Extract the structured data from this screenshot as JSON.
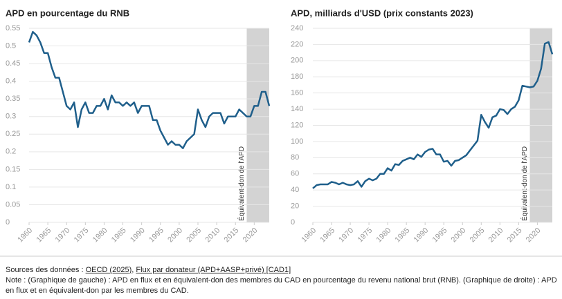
{
  "chart_data": [
    {
      "type": "line",
      "title": "APD en pourcentage du RNB",
      "color": "#1f5f8b",
      "grid": true,
      "x": [
        1960,
        1961,
        1962,
        1963,
        1964,
        1965,
        1966,
        1967,
        1968,
        1969,
        1970,
        1971,
        1972,
        1973,
        1974,
        1975,
        1976,
        1977,
        1978,
        1979,
        1980,
        1981,
        1982,
        1983,
        1984,
        1985,
        1986,
        1987,
        1988,
        1989,
        1990,
        1991,
        1992,
        1993,
        1994,
        1995,
        1996,
        1997,
        1998,
        1999,
        2000,
        2001,
        2002,
        2003,
        2004,
        2005,
        2006,
        2007,
        2008,
        2009,
        2010,
        2011,
        2012,
        2013,
        2014,
        2015,
        2016,
        2017,
        2018,
        2019,
        2020,
        2021,
        2022,
        2023,
        2024
      ],
      "values": [
        0.51,
        0.54,
        0.53,
        0.51,
        0.48,
        0.48,
        0.44,
        0.41,
        0.41,
        0.37,
        0.33,
        0.32,
        0.34,
        0.27,
        0.32,
        0.34,
        0.31,
        0.31,
        0.33,
        0.33,
        0.35,
        0.32,
        0.36,
        0.34,
        0.34,
        0.33,
        0.34,
        0.33,
        0.34,
        0.31,
        0.33,
        0.33,
        0.33,
        0.29,
        0.29,
        0.26,
        0.24,
        0.22,
        0.23,
        0.22,
        0.22,
        0.21,
        0.23,
        0.24,
        0.25,
        0.32,
        0.29,
        0.27,
        0.3,
        0.31,
        0.31,
        0.31,
        0.28,
        0.3,
        0.3,
        0.3,
        0.32,
        0.31,
        0.3,
        0.3,
        0.33,
        0.33,
        0.37,
        0.37,
        0.33
      ],
      "xlim": [
        1960,
        2024
      ],
      "xticks": [
        1960,
        1965,
        1970,
        1975,
        1980,
        1985,
        1990,
        1995,
        2000,
        2005,
        2010,
        2015,
        2020
      ],
      "ylim": [
        0,
        0.55
      ],
      "yticks": [
        0,
        0.05,
        0.1,
        0.15,
        0.2,
        0.25,
        0.3,
        0.35,
        0.4,
        0.45,
        0.5,
        0.55
      ],
      "shaded_region": {
        "x": [
          2018,
          2024
        ],
        "label": "Équivalent-don de l'APD"
      }
    },
    {
      "type": "line",
      "title": "APD, milliards d'USD (prix constants 2023)",
      "color": "#1f5f8b",
      "grid": true,
      "x": [
        1960,
        1961,
        1962,
        1963,
        1964,
        1965,
        1966,
        1967,
        1968,
        1969,
        1970,
        1971,
        1972,
        1973,
        1974,
        1975,
        1976,
        1977,
        1978,
        1979,
        1980,
        1981,
        1982,
        1983,
        1984,
        1985,
        1986,
        1987,
        1988,
        1989,
        1990,
        1991,
        1992,
        1993,
        1994,
        1995,
        1996,
        1997,
        1998,
        1999,
        2000,
        2001,
        2002,
        2003,
        2004,
        2005,
        2006,
        2007,
        2008,
        2009,
        2010,
        2011,
        2012,
        2013,
        2014,
        2015,
        2016,
        2017,
        2018,
        2019,
        2020,
        2021,
        2022,
        2023,
        2024
      ],
      "values": [
        42,
        46,
        47,
        47,
        47,
        50,
        49,
        47,
        49,
        47,
        46,
        47,
        51,
        44,
        51,
        54,
        52,
        54,
        60,
        60,
        67,
        64,
        72,
        71,
        76,
        78,
        80,
        78,
        84,
        81,
        87,
        90,
        91,
        84,
        84,
        75,
        76,
        70,
        76,
        77,
        80,
        83,
        89,
        95,
        101,
        133,
        124,
        117,
        130,
        132,
        140,
        139,
        134,
        140,
        143,
        151,
        169,
        168,
        167,
        168,
        175,
        190,
        221,
        223,
        208
      ],
      "xlim": [
        1960,
        2024
      ],
      "xticks": [
        1960,
        1965,
        1970,
        1975,
        1980,
        1985,
        1990,
        1995,
        2000,
        2005,
        2010,
        2015,
        2020
      ],
      "ylim": [
        0,
        240
      ],
      "yticks": [
        0,
        20,
        40,
        60,
        80,
        100,
        120,
        140,
        160,
        180,
        200,
        220,
        240
      ],
      "shaded_region": {
        "x": [
          2018,
          2024
        ],
        "label": "Équivalent-don de l'APD"
      }
    }
  ],
  "sources": [
    "Sources des données :",
    "OECD (2025)",
    ",",
    "Flux par donateur (APD+AASP+privé) [CAD1]"
  ],
  "note": "Note : (Graphique de gauche) : APD en flux et en équivalent-don des membres du CAD en pourcentage du revenu national brut (RNB). (Graphique de droite) : APD en flux et en équivalent-don par les membres du CAD."
}
